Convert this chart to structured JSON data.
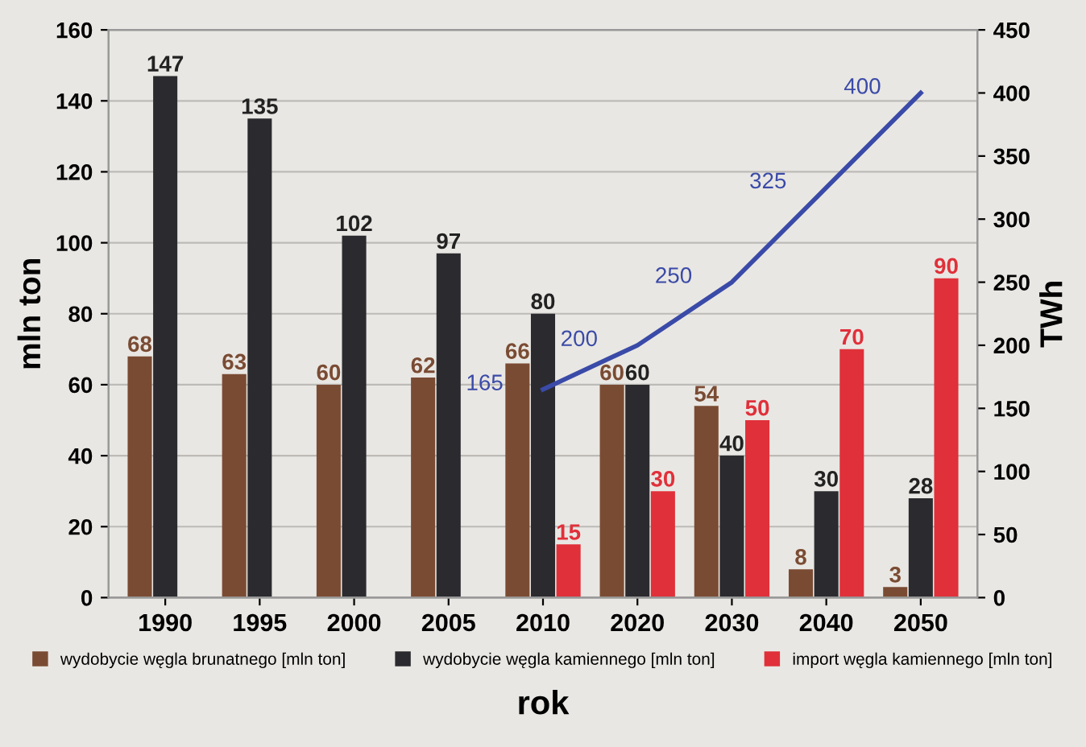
{
  "chart_data": {
    "type": "bar",
    "xlabel": "rok",
    "ylabel": "mln ton",
    "y2label": "TWh",
    "categories": [
      "1990",
      "1995",
      "2000",
      "2005",
      "2010",
      "2020",
      "2030",
      "2040",
      "2050"
    ],
    "series": [
      {
        "name": "wydobycie węgla brunatnego [mln ton]",
        "color": "#7a4b33",
        "values": [
          68,
          63,
          60,
          62,
          66,
          60,
          54,
          8,
          3
        ]
      },
      {
        "name": "wydobycie węgla kamiennego [mln ton]",
        "color": "#2b2b2f",
        "values": [
          147,
          135,
          102,
          97,
          80,
          60,
          40,
          30,
          28
        ]
      },
      {
        "name": "import węgla kamiennego [mln ton]",
        "color": "#e0303a",
        "values": [
          null,
          null,
          null,
          null,
          15,
          30,
          50,
          70,
          90
        ]
      },
      {
        "type": "line",
        "axis": "y2",
        "color": "#3a4aa8",
        "values": [
          null,
          null,
          null,
          null,
          165,
          200,
          250,
          325,
          400
        ]
      }
    ],
    "ylim": [
      0,
      160
    ],
    "yticks": [
      0,
      20,
      40,
      60,
      80,
      100,
      120,
      140,
      160
    ],
    "y2lim": [
      0,
      450
    ],
    "y2ticks": [
      0,
      50,
      100,
      150,
      200,
      250,
      300,
      350,
      400,
      450
    ],
    "grid": "y",
    "legend": "bottom",
    "data_labels": true,
    "marker": "none",
    "line_style": "solid"
  }
}
